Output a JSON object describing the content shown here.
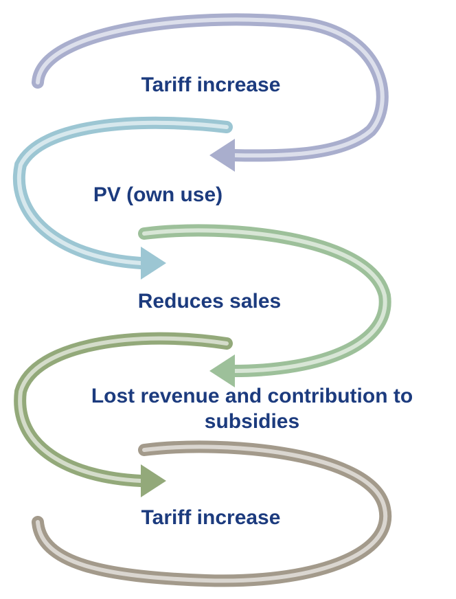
{
  "nodes": [
    {
      "label": "Tariff increase"
    },
    {
      "label": "PV (own use)"
    },
    {
      "label": "Reduces sales"
    },
    {
      "lines": [
        "Lost revenue and contribution to",
        "subsidies"
      ]
    },
    {
      "label": "Tariff increase"
    }
  ]
}
